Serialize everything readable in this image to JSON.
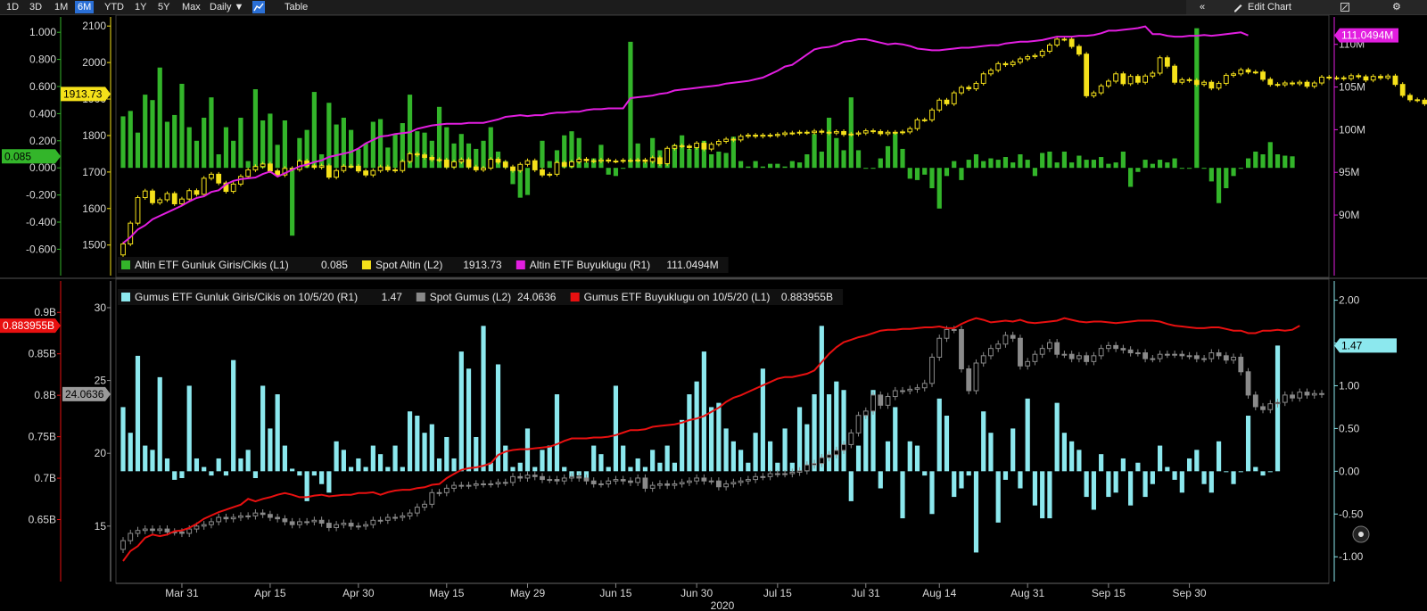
{
  "toolbar": {
    "ranges": [
      "1D",
      "3D",
      "1M",
      "6M",
      "YTD",
      "1Y",
      "5Y",
      "Max"
    ],
    "active_range": "6M",
    "frequency": "Daily ▼",
    "chart_icon": "line-chart-icon",
    "table_label": "Table",
    "collapse_icon": "double-chevron-left-icon",
    "edit_label": "Edit Chart",
    "expand_icon": "expand-icon",
    "settings_icon": "gear-icon"
  },
  "colors": {
    "gold_flow": "#33b52a",
    "gold_price": "#f5e11a",
    "gold_etf": "#e21ee0",
    "silver_flow": "#8ce8ee",
    "silver_price": "#8a8a8a",
    "silver_etf": "#e81010",
    "axis_l2_top": "#f5e11a",
    "axis_l2_bottom": "#8a8a8a"
  },
  "chart_data": [
    {
      "type": "bar+candlestick+line",
      "legend": [
        {
          "label": "Altin ETF Gunluk Giris/Cikis (L1)",
          "value": "0.085",
          "color": "#33b52a"
        },
        {
          "label": "Spot Altin (L2)",
          "value": "1913.73",
          "color": "#f5e11a"
        },
        {
          "label": "Altin ETF Buyuklugu (R1)",
          "value": "111.0494M",
          "color": "#e21ee0"
        }
      ],
      "axis_l1": {
        "ticks": [
          "1.000",
          "0.800",
          "0.600",
          "0.400",
          "0.200",
          "0.000",
          "-0.200",
          "-0.400",
          "-0.600"
        ],
        "range": [
          -0.65,
          1.1
        ],
        "last_label": "0.085"
      },
      "axis_l2": {
        "ticks": [
          "2100",
          "2000",
          "1900",
          "1800",
          "1700",
          "1600",
          "1500"
        ],
        "range": [
          1470,
          2120
        ],
        "last_label": "1913.73"
      },
      "axis_r1": {
        "ticks": [
          "110M",
          "105M",
          "100M",
          "95M",
          "90M"
        ],
        "range": [
          85.2,
          113.0
        ],
        "last_label": "111.0494M"
      },
      "flows": [
        0.38,
        0.42,
        0.26,
        0.54,
        0.5,
        0.74,
        0.34,
        0.39,
        0.62,
        0.3,
        0.2,
        0.37,
        0.52,
        0.1,
        0.3,
        0.2,
        0.37,
        0.05,
        0.58,
        0.35,
        0.4,
        0.17,
        0.35,
        -0.5,
        0.22,
        0.28,
        0.56,
        0.1,
        0.48,
        0.32,
        0.37,
        0.28,
        0.14,
        0.18,
        0.34,
        0.36,
        0.15,
        0.25,
        0.33,
        0.54,
        0.27,
        0.26,
        0.2,
        0.45,
        0.3,
        0.18,
        0.25,
        0.18,
        0.14,
        0.2,
        0.3,
        0.12,
        0.05,
        -0.12,
        -0.22,
        -0.2,
        0.03,
        0.2,
        0.05,
        0.13,
        0.24,
        0.27,
        0.22,
        0.04,
        0.07,
        0.17,
        -0.05,
        -0.06,
        0.0,
        0.93,
        0.18,
        0.04,
        0.22,
        0.13,
        0.09,
        0.17,
        0.24,
        0.14,
        0.17,
        0.2,
        0.1,
        0.12,
        0.11,
        0.23,
        0.05,
        0.01,
        0.05,
        0.01,
        0.03,
        0.03,
        0.01,
        0.05,
        0.04,
        0.1,
        0.25,
        0.12,
        0.37,
        0.22,
        0.13,
        0.52,
        0.13,
        0.0,
        0.0,
        0.07,
        0.16,
        0.26,
        0.14,
        -0.08,
        -0.09,
        -0.05,
        -0.15,
        -0.3,
        -0.06,
        0.05,
        -0.09,
        0.06,
        0.1,
        0.05,
        0.07,
        0.06,
        0.08,
        0.04,
        0.1,
        0.06,
        -0.06,
        0.11,
        0.12,
        0.04,
        0.12,
        0.04,
        0.09,
        0.06,
        0.06,
        0.08,
        0.03,
        0.04,
        0.12,
        -0.14,
        -0.03,
        0.06,
        0.03,
        0.06,
        0.04,
        0.07,
        0.0,
        0.0,
        1.03,
        0.0,
        -0.1,
        -0.26,
        -0.15,
        -0.06,
        0.0,
        0.07,
        0.12,
        0.1,
        0.19,
        0.1,
        0.09,
        0.085
      ],
      "spot": [
        1503,
        1560,
        1630,
        1648,
        1616,
        1624,
        1641,
        1613,
        1626,
        1649,
        1639,
        1683,
        1694,
        1670,
        1647,
        1667,
        1688,
        1706,
        1715,
        1722,
        1703,
        1692,
        1710,
        1707,
        1730,
        1717,
        1713,
        1717,
        1686,
        1704,
        1716,
        1716,
        1703,
        1692,
        1704,
        1714,
        1706,
        1704,
        1729,
        1750,
        1747,
        1740,
        1734,
        1733,
        1714,
        1728,
        1734,
        1714,
        1706,
        1711,
        1735,
        1727,
        1714,
        1704,
        1721,
        1731,
        1706,
        1692,
        1694,
        1726,
        1716,
        1728,
        1735,
        1731,
        1730,
        1733,
        1730,
        1730,
        1732,
        1732,
        1733,
        1729,
        1739,
        1723,
        1765,
        1772,
        1771,
        1767,
        1779,
        1763,
        1776,
        1784,
        1790,
        1788,
        1798,
        1801,
        1798,
        1801,
        1800,
        1803,
        1807,
        1807,
        1809,
        1808,
        1812,
        1809,
        1807,
        1811,
        1803,
        1804,
        1807,
        1813,
        1811,
        1805,
        1809,
        1808,
        1810,
        1819,
        1843,
        1843,
        1870,
        1897,
        1887,
        1917,
        1932,
        1928,
        1943,
        1969,
        1979,
        1997,
        1994,
        2001,
        2010,
        2016,
        2019,
        2031,
        2048,
        2064,
        2064,
        2044,
        2023,
        1909,
        1917,
        1936,
        1949,
        1969,
        1942,
        1962,
        1946,
        1963,
        1971,
        2013,
        1990,
        1946,
        1953,
        1951,
        1940,
        1946,
        1930,
        1943,
        1965,
        1969,
        1980,
        1974,
        1974,
        1954,
        1940,
        1939,
        1944,
        1942,
        1946,
        1935,
        1944,
        1960,
        1958,
        1958,
        1956,
        1964,
        1961,
        1952,
        1962,
        1958,
        1963,
        1940,
        1910,
        1898,
        1897,
        1887,
        1880,
        1875,
        1883,
        1891,
        1898,
        1906,
        1907,
        1901,
        1906,
        1912,
        1913.73
      ],
      "etf_size": [
        86.7,
        87.4,
        88.3,
        88.8,
        89.5,
        89.9,
        90.3,
        90.7,
        91.1,
        91.6,
        92.0,
        92.2,
        92.7,
        92.9,
        93.6,
        94.0,
        94.2,
        94.3,
        94.4,
        94.8,
        95.1,
        94.5,
        94.9,
        95.3,
        95.7,
        95.9,
        96.2,
        96.4,
        96.8,
        97.0,
        97.2,
        97.4,
        97.8,
        98.4,
        98.8,
        99.2,
        99.3,
        99.5,
        99.6,
        99.7,
        100.1,
        100.3,
        100.5,
        100.6,
        100.7,
        100.7,
        100.7,
        100.8,
        100.8,
        100.8,
        101.0,
        101.2,
        101.5,
        101.6,
        101.7,
        101.6,
        101.7,
        101.7,
        101.9,
        102.0,
        102.0,
        102.1,
        102.1,
        102.3,
        102.4,
        102.4,
        102.5,
        102.5,
        102.5,
        103.7,
        103.8,
        103.9,
        104.0,
        104.2,
        104.3,
        104.6,
        104.7,
        104.8,
        104.9,
        105.0,
        105.1,
        105.2,
        105.4,
        105.5,
        105.6,
        105.7,
        105.9,
        106.1,
        106.5,
        106.9,
        107.4,
        107.6,
        108.2,
        108.8,
        109.4,
        109.6,
        109.7,
        109.9,
        110.3,
        110.4,
        110.6,
        110.6,
        110.4,
        110.2,
        110.0,
        110.1,
        110.0,
        109.8,
        109.5,
        109.4,
        109.3,
        109.3,
        109.4,
        109.5,
        109.6,
        109.6,
        109.7,
        109.8,
        109.9,
        109.9,
        110.1,
        110.2,
        110.3,
        110.3,
        110.4,
        110.5,
        110.7,
        110.9,
        110.9,
        110.9,
        111.0,
        111.0,
        111.1,
        111.3,
        111.6,
        111.6,
        111.7,
        111.8,
        111.9,
        112.1,
        111.2,
        111.2,
        111.0,
        110.9,
        110.9,
        111.0,
        111.0,
        111.1,
        111.0,
        111.1,
        111.2,
        111.3,
        111.4,
        111.0494
      ]
    },
    {
      "type": "bar+candlestick+line",
      "legend": [
        {
          "label": "Gumus ETF Gunluk Giris/Cikis on 10/5/20 (R1)",
          "value": "1.47",
          "color": "#8ce8ee"
        },
        {
          "label": "Spot Gumus (L2)",
          "value": "24.0636",
          "color": "#8a8a8a"
        },
        {
          "label": "Gumus ETF Buyuklugu on 10/5/20 (L1)",
          "value": "0.883955B",
          "color": "#e81010"
        }
      ],
      "axis_l1": {
        "ticks": [
          "0.9B",
          "0.85B",
          "0.8B",
          "0.75B",
          "0.7B",
          "0.65B"
        ],
        "range": [
          0.6,
          0.925
        ],
        "last_label": "0.883955B"
      },
      "axis_l2": {
        "ticks": [
          "30",
          "25",
          "20",
          "15"
        ],
        "range": [
          12.6,
          31.1
        ],
        "last_label": "24.0636"
      },
      "axis_r1": {
        "ticks": [
          "2.00",
          "1.50",
          "1.00",
          "0.50",
          "0.00",
          "-0.50",
          "-1.00"
        ],
        "range": [
          -1.05,
          2.1
        ],
        "last_label": "1.47"
      },
      "x_ticks": [
        {
          "label": "Mar 31",
          "i": 8
        },
        {
          "label": "Apr 15",
          "i": 20
        },
        {
          "label": "Apr 30",
          "i": 32
        },
        {
          "label": "May 15",
          "i": 44
        },
        {
          "label": "May 29",
          "i": 55
        },
        {
          "label": "Jun 15",
          "i": 67
        },
        {
          "label": "Jun 30",
          "i": 78
        },
        {
          "label": "Jul 15",
          "i": 89
        },
        {
          "label": "Jul 31",
          "i": 101
        },
        {
          "label": "Aug 14",
          "i": 111
        },
        {
          "label": "Aug 31",
          "i": 123
        },
        {
          "label": "Sep 15",
          "i": 134
        },
        {
          "label": "Sep 30",
          "i": 145
        }
      ],
      "x_year": "2020",
      "flows": [
        0.75,
        0.45,
        1.35,
        0.3,
        0.25,
        1.1,
        0.15,
        -0.1,
        -0.08,
        1.0,
        0.15,
        0.05,
        -0.05,
        0.15,
        -0.05,
        1.3,
        0.15,
        0.25,
        -0.08,
        1.0,
        0.5,
        0.9,
        0.3,
        0.03,
        -0.05,
        -0.35,
        -0.05,
        -0.15,
        -0.25,
        0.35,
        0.25,
        0.05,
        0.15,
        0.05,
        0.3,
        0.2,
        0.05,
        0.3,
        0.05,
        0.7,
        0.65,
        0.45,
        0.55,
        0.15,
        0.4,
        0.15,
        1.4,
        1.2,
        0.4,
        1.7,
        0.1,
        1.25,
        0.3,
        0.05,
        0.1,
        0.5,
        0.05,
        0.25,
        0.3,
        0.9,
        0.05,
        -0.08,
        -0.05,
        -0.1,
        0.3,
        0.2,
        0.05,
        1.0,
        0.3,
        0.05,
        0.15,
        0.05,
        0.25,
        0.1,
        0.3,
        0.1,
        0.6,
        0.9,
        1.05,
        1.4,
        0.75,
        0.8,
        0.5,
        0.35,
        0.25,
        0.1,
        0.45,
        1.2,
        0.35,
        0.1,
        0.5,
        0.1,
        0.75,
        0.55,
        0.9,
        1.7,
        0.9,
        1.05,
        0.95,
        -0.35,
        0.3,
        0.7,
        0.95,
        -0.2,
        0.35,
        0.75,
        -0.55,
        0.35,
        0.3,
        -0.05,
        -0.5,
        0.85,
        0.65,
        -0.3,
        -0.2,
        -0.05,
        -0.95,
        0.7,
        0.45,
        -0.6,
        -0.1,
        0.5,
        -0.2,
        0.85,
        -0.4,
        -0.55,
        -0.55,
        0.8,
        0.45,
        0.35,
        0.25,
        -0.3,
        -0.45,
        0.2,
        -0.3,
        -0.25,
        0.15,
        -0.4,
        0.1,
        -0.3,
        -0.15,
        0.3,
        0.05,
        -0.1,
        -0.25,
        0.15,
        0.25,
        -0.15,
        -0.25,
        0.35,
        0.0,
        -0.15,
        0.0,
        0.65,
        0.05,
        -0.05,
        0.0,
        1.47
      ],
      "spot": [
        14.0,
        14.5,
        14.7,
        14.8,
        14.7,
        14.8,
        14.6,
        14.6,
        14.5,
        14.8,
        15.0,
        15.1,
        15.3,
        15.6,
        15.5,
        15.6,
        15.7,
        15.7,
        15.9,
        15.8,
        15.6,
        15.5,
        15.3,
        15.1,
        15.3,
        15.3,
        15.4,
        15.2,
        14.9,
        15.1,
        15.2,
        15.0,
        15.0,
        15.1,
        15.4,
        15.4,
        15.6,
        15.6,
        15.7,
        15.9,
        16.3,
        16.5,
        17.3,
        17.3,
        17.6,
        17.8,
        17.8,
        17.8,
        17.9,
        17.9,
        17.9,
        18.0,
        18.0,
        18.4,
        18.3,
        18.5,
        18.4,
        18.2,
        18.2,
        18.1,
        18.3,
        18.4,
        18.3,
        18.1,
        17.9,
        17.9,
        18.1,
        18.2,
        18.1,
        18.0,
        18.3,
        17.6,
        17.8,
        17.9,
        17.8,
        17.9,
        18.0,
        18.1,
        18.3,
        18.1,
        18.1,
        17.7,
        17.9,
        18.0,
        18.1,
        18.2,
        18.4,
        18.4,
        18.6,
        18.6,
        18.6,
        18.7,
        18.8,
        19.2,
        19.3,
        19.7,
        19.9,
        20.2,
        20.6,
        21.4,
        22.6,
        22.9,
        24.0,
        23.3,
        23.9,
        24.3,
        24.3,
        24.4,
        24.5,
        24.8,
        26.6,
        27.9,
        28.5,
        28.5,
        25.8,
        24.3,
        26.2,
        26.7,
        27.2,
        27.5,
        28.1,
        27.9,
        26.0,
        26.3,
        26.8,
        27.2,
        27.6,
        26.8,
        26.8,
        26.5,
        26.7,
        26.3,
        26.7,
        27.2,
        27.4,
        27.2,
        27.1,
        26.9,
        26.9,
        26.5,
        26.5,
        26.8,
        26.8,
        26.8,
        26.7,
        26.7,
        26.5,
        26.5,
        26.9,
        26.7,
        26.4,
        26.6,
        25.6,
        24.0,
        23.2,
        23.0,
        23.4,
        23.5,
        24.0,
        23.8,
        24.2,
        24.0,
        24.1,
        24.0636
      ],
      "etf_size": [
        0.6,
        0.612,
        0.618,
        0.628,
        0.632,
        0.63,
        0.632,
        0.636,
        0.637,
        0.64,
        0.645,
        0.651,
        0.655,
        0.659,
        0.662,
        0.665,
        0.668,
        0.675,
        0.672,
        0.675,
        0.677,
        0.68,
        0.682,
        0.68,
        0.677,
        0.677,
        0.679,
        0.68,
        0.678,
        0.679,
        0.68,
        0.68,
        0.682,
        0.682,
        0.683,
        0.68,
        0.683,
        0.685,
        0.686,
        0.686,
        0.688,
        0.689,
        0.692,
        0.693,
        0.7,
        0.705,
        0.71,
        0.712,
        0.713,
        0.715,
        0.718,
        0.728,
        0.732,
        0.734,
        0.735,
        0.735,
        0.736,
        0.737,
        0.738,
        0.741,
        0.745,
        0.748,
        0.748,
        0.748,
        0.749,
        0.749,
        0.75,
        0.752,
        0.755,
        0.758,
        0.758,
        0.759,
        0.762,
        0.763,
        0.764,
        0.765,
        0.767,
        0.77,
        0.772,
        0.775,
        0.78,
        0.785,
        0.792,
        0.797,
        0.8,
        0.804,
        0.808,
        0.812,
        0.816,
        0.82,
        0.822,
        0.822,
        0.824,
        0.826,
        0.83,
        0.84,
        0.85,
        0.858,
        0.864,
        0.867,
        0.87,
        0.872,
        0.875,
        0.878,
        0.879,
        0.879,
        0.88,
        0.88,
        0.881,
        0.882,
        0.882,
        0.883,
        0.881,
        0.881,
        0.886,
        0.89,
        0.893,
        0.891,
        0.888,
        0.889,
        0.89,
        0.889,
        0.891,
        0.888,
        0.887,
        0.888,
        0.889,
        0.89,
        0.893,
        0.891,
        0.889,
        0.888,
        0.889,
        0.889,
        0.888,
        0.887,
        0.888,
        0.889,
        0.89,
        0.89,
        0.89,
        0.889,
        0.886,
        0.884,
        0.883,
        0.882,
        0.881,
        0.881,
        0.882,
        0.882,
        0.88,
        0.878,
        0.878,
        0.875,
        0.875,
        0.878,
        0.878,
        0.879,
        0.878,
        0.879,
        0.883955
      ]
    }
  ]
}
